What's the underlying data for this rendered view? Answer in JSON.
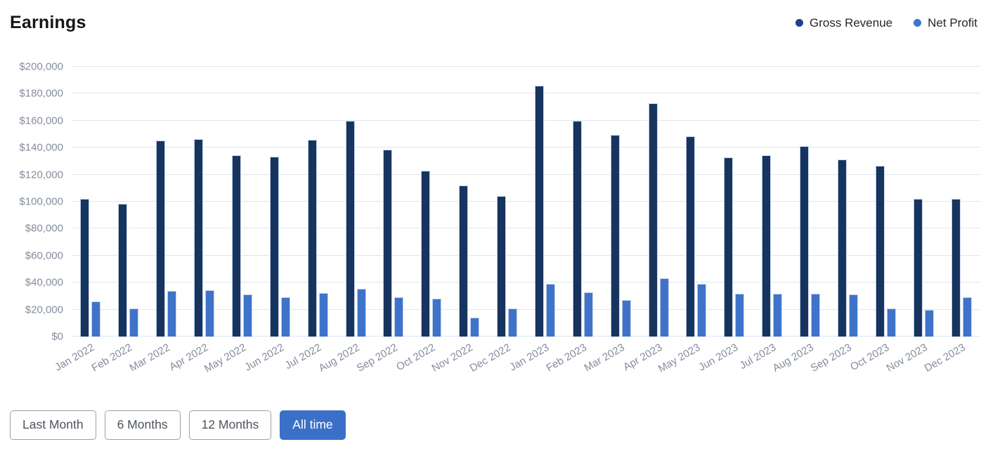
{
  "page": {
    "title": "Earnings"
  },
  "legend": [
    {
      "label": "Gross Revenue",
      "color": "#1d4289"
    },
    {
      "label": "Net Profit",
      "color": "#3e73c9"
    }
  ],
  "buttons": [
    {
      "label": "Last Month",
      "active": false
    },
    {
      "label": "6 Months",
      "active": false
    },
    {
      "label": "12 Months",
      "active": false
    },
    {
      "label": "All time",
      "active": true
    }
  ],
  "chart_data": {
    "type": "bar",
    "title": "Earnings",
    "categories": [
      "Jan 2022",
      "Feb 2022",
      "Mar 2022",
      "Apr 2022",
      "May 2022",
      "Jun 2022",
      "Jul 2022",
      "Aug 2022",
      "Sep 2022",
      "Oct 2022",
      "Nov 2022",
      "Dec 2022",
      "Jan 2023",
      "Feb 2023",
      "Mar 2023",
      "Apr 2023",
      "May 2023",
      "Jun 2023",
      "Jul 2023",
      "Aug 2023",
      "Sep 2023",
      "Oct 2023",
      "Nov 2023",
      "Dec 2023"
    ],
    "series": [
      {
        "name": "Gross Revenue",
        "color": "#17345e",
        "values": [
          102000,
          98500,
          145500,
          146500,
          134500,
          133500,
          146000,
          160000,
          138500,
          123000,
          112000,
          104000,
          186000,
          160000,
          149500,
          173000,
          148500,
          133000,
          134500,
          141000,
          131000,
          126500,
          102000,
          102000
        ]
      },
      {
        "name": "Net Profit",
        "color": "#3e73c9",
        "values": [
          26000,
          21000,
          34000,
          34500,
          31000,
          29000,
          32500,
          35500,
          29000,
          28000,
          14000,
          21000,
          39000,
          33000,
          27000,
          43000,
          39000,
          32000,
          32000,
          32000,
          31500,
          21000,
          20000,
          29000
        ]
      }
    ],
    "ylim": [
      0,
      200000
    ],
    "y_tick_step": 20000,
    "y_tick_labels": [
      "$0",
      "$20,000",
      "$40,000",
      "$60,000",
      "$80,000",
      "$100,000",
      "$120,000",
      "$140,000",
      "$160,000",
      "$180,000",
      "$200,000"
    ],
    "grid": true,
    "legend_position": "top-right",
    "xlabel": "",
    "ylabel": ""
  }
}
